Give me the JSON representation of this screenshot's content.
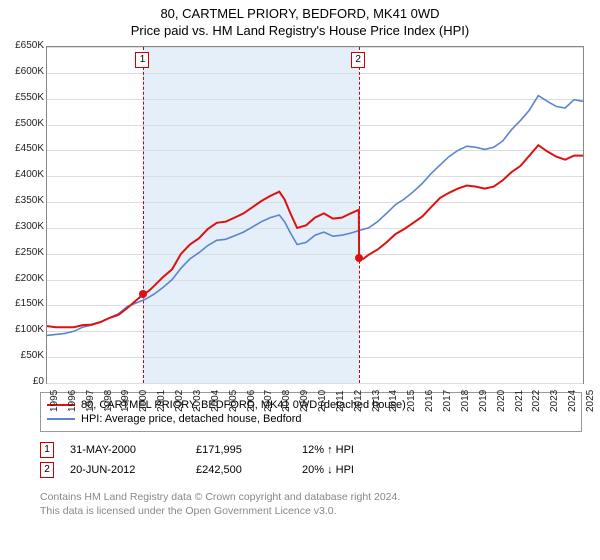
{
  "title_line1": "80, CARTMEL PRIORY, BEDFORD, MK41 0WD",
  "title_line2": "Price paid vs. HM Land Registry's House Price Index (HPI)",
  "chart": {
    "type": "line",
    "x_min": 1995,
    "x_max": 2025,
    "y_min": 0,
    "y_max": 650000,
    "y_tick_step": 50000,
    "y_prefix": "£",
    "y_suffix": "K",
    "y_tick_labels": [
      "£0",
      "£50K",
      "£100K",
      "£150K",
      "£200K",
      "£250K",
      "£300K",
      "£350K",
      "£400K",
      "£450K",
      "£500K",
      "£550K",
      "£600K",
      "£650K"
    ],
    "x_ticks": [
      1995,
      1996,
      1997,
      1998,
      1999,
      2000,
      2001,
      2002,
      2003,
      2004,
      2005,
      2006,
      2007,
      2008,
      2009,
      2010,
      2011,
      2012,
      2013,
      2014,
      2015,
      2016,
      2017,
      2018,
      2019,
      2020,
      2021,
      2022,
      2023,
      2024,
      2025
    ],
    "background_color": "#ffffff",
    "grid_color": "#dddddd",
    "band_color": "#e5effa",
    "band_start": 2000.4,
    "band_end": 2012.47,
    "marker_line_color": "#cc0000",
    "series": {
      "price_paid": {
        "color": "#dd1111",
        "line_width": 2,
        "points": [
          [
            1995.0,
            110000
          ],
          [
            1995.5,
            108000
          ],
          [
            1996.0,
            108000
          ],
          [
            1996.5,
            108000
          ],
          [
            1997.0,
            112000
          ],
          [
            1997.5,
            113000
          ],
          [
            1998.0,
            118000
          ],
          [
            1998.5,
            126000
          ],
          [
            1999.0,
            132000
          ],
          [
            1999.5,
            145000
          ],
          [
            2000.0,
            160000
          ],
          [
            2000.4,
            171995
          ],
          [
            2000.7,
            178000
          ],
          [
            2001.0,
            188000
          ],
          [
            2001.5,
            205000
          ],
          [
            2002.0,
            220000
          ],
          [
            2002.5,
            250000
          ],
          [
            2003.0,
            268000
          ],
          [
            2003.5,
            280000
          ],
          [
            2004.0,
            298000
          ],
          [
            2004.5,
            310000
          ],
          [
            2005.0,
            312000
          ],
          [
            2005.5,
            320000
          ],
          [
            2006.0,
            328000
          ],
          [
            2006.5,
            340000
          ],
          [
            2007.0,
            352000
          ],
          [
            2007.5,
            362000
          ],
          [
            2008.0,
            370000
          ],
          [
            2008.3,
            355000
          ],
          [
            2008.6,
            330000
          ],
          [
            2009.0,
            300000
          ],
          [
            2009.5,
            305000
          ],
          [
            2010.0,
            320000
          ],
          [
            2010.5,
            328000
          ],
          [
            2011.0,
            318000
          ],
          [
            2011.5,
            320000
          ],
          [
            2012.0,
            328000
          ],
          [
            2012.45,
            335000
          ],
          [
            2012.47,
            242500
          ],
          [
            2012.7,
            240000
          ],
          [
            2013.0,
            248000
          ],
          [
            2013.5,
            258000
          ],
          [
            2014.0,
            272000
          ],
          [
            2014.5,
            288000
          ],
          [
            2015.0,
            298000
          ],
          [
            2015.5,
            310000
          ],
          [
            2016.0,
            322000
          ],
          [
            2016.5,
            340000
          ],
          [
            2017.0,
            358000
          ],
          [
            2017.5,
            368000
          ],
          [
            2018.0,
            376000
          ],
          [
            2018.5,
            382000
          ],
          [
            2019.0,
            380000
          ],
          [
            2019.5,
            376000
          ],
          [
            2020.0,
            380000
          ],
          [
            2020.5,
            392000
          ],
          [
            2021.0,
            408000
          ],
          [
            2021.5,
            420000
          ],
          [
            2022.0,
            440000
          ],
          [
            2022.5,
            460000
          ],
          [
            2023.0,
            448000
          ],
          [
            2023.5,
            438000
          ],
          [
            2024.0,
            432000
          ],
          [
            2024.5,
            440000
          ],
          [
            2025.0,
            440000
          ]
        ]
      },
      "hpi": {
        "color": "#5a85cc",
        "line_width": 1.6,
        "points": [
          [
            1995.0,
            92000
          ],
          [
            1995.5,
            94000
          ],
          [
            1996.0,
            96000
          ],
          [
            1996.5,
            100000
          ],
          [
            1997.0,
            108000
          ],
          [
            1997.5,
            112000
          ],
          [
            1998.0,
            118000
          ],
          [
            1998.5,
            126000
          ],
          [
            1999.0,
            134000
          ],
          [
            1999.5,
            148000
          ],
          [
            2000.0,
            155000
          ],
          [
            2000.5,
            162000
          ],
          [
            2001.0,
            172000
          ],
          [
            2001.5,
            185000
          ],
          [
            2002.0,
            200000
          ],
          [
            2002.5,
            222000
          ],
          [
            2003.0,
            240000
          ],
          [
            2003.5,
            252000
          ],
          [
            2004.0,
            266000
          ],
          [
            2004.5,
            276000
          ],
          [
            2005.0,
            278000
          ],
          [
            2005.5,
            285000
          ],
          [
            2006.0,
            292000
          ],
          [
            2006.5,
            302000
          ],
          [
            2007.0,
            312000
          ],
          [
            2007.5,
            320000
          ],
          [
            2008.0,
            325000
          ],
          [
            2008.3,
            312000
          ],
          [
            2008.6,
            292000
          ],
          [
            2009.0,
            268000
          ],
          [
            2009.5,
            272000
          ],
          [
            2010.0,
            286000
          ],
          [
            2010.5,
            292000
          ],
          [
            2011.0,
            284000
          ],
          [
            2011.5,
            286000
          ],
          [
            2012.0,
            290000
          ],
          [
            2012.47,
            295000
          ],
          [
            2013.0,
            300000
          ],
          [
            2013.5,
            312000
          ],
          [
            2014.0,
            328000
          ],
          [
            2014.5,
            345000
          ],
          [
            2015.0,
            356000
          ],
          [
            2015.5,
            370000
          ],
          [
            2016.0,
            386000
          ],
          [
            2016.5,
            405000
          ],
          [
            2017.0,
            422000
          ],
          [
            2017.5,
            438000
          ],
          [
            2018.0,
            450000
          ],
          [
            2018.5,
            458000
          ],
          [
            2019.0,
            456000
          ],
          [
            2019.5,
            452000
          ],
          [
            2020.0,
            456000
          ],
          [
            2020.5,
            468000
          ],
          [
            2021.0,
            490000
          ],
          [
            2021.5,
            508000
          ],
          [
            2022.0,
            528000
          ],
          [
            2022.5,
            556000
          ],
          [
            2023.0,
            545000
          ],
          [
            2023.5,
            535000
          ],
          [
            2024.0,
            532000
          ],
          [
            2024.5,
            548000
          ],
          [
            2025.0,
            545000
          ]
        ]
      }
    },
    "transaction_points": [
      {
        "x": 2000.4,
        "y": 171995,
        "color": "#dd1111"
      },
      {
        "x": 2012.47,
        "y": 242500,
        "color": "#dd1111"
      }
    ],
    "marker_boxes": [
      {
        "x": 2000.4,
        "label": "1"
      },
      {
        "x": 2012.47,
        "label": "2"
      }
    ]
  },
  "legend": {
    "series1": {
      "label": "80, CARTMEL PRIORY, BEDFORD, MK41 0WD (detached house)",
      "color": "#dd1111"
    },
    "series2": {
      "label": "HPI: Average price, detached house, Bedford",
      "color": "#5a85cc"
    }
  },
  "transactions": [
    {
      "num": "1",
      "date": "31-MAY-2000",
      "price": "£171,995",
      "pct": "12% ↑ HPI"
    },
    {
      "num": "2",
      "date": "20-JUN-2012",
      "price": "£242,500",
      "pct": "20% ↓ HPI"
    }
  ],
  "footer_line1": "Contains HM Land Registry data © Crown copyright and database right 2024.",
  "footer_line2": "This data is licensed under the Open Government Licence v3.0."
}
